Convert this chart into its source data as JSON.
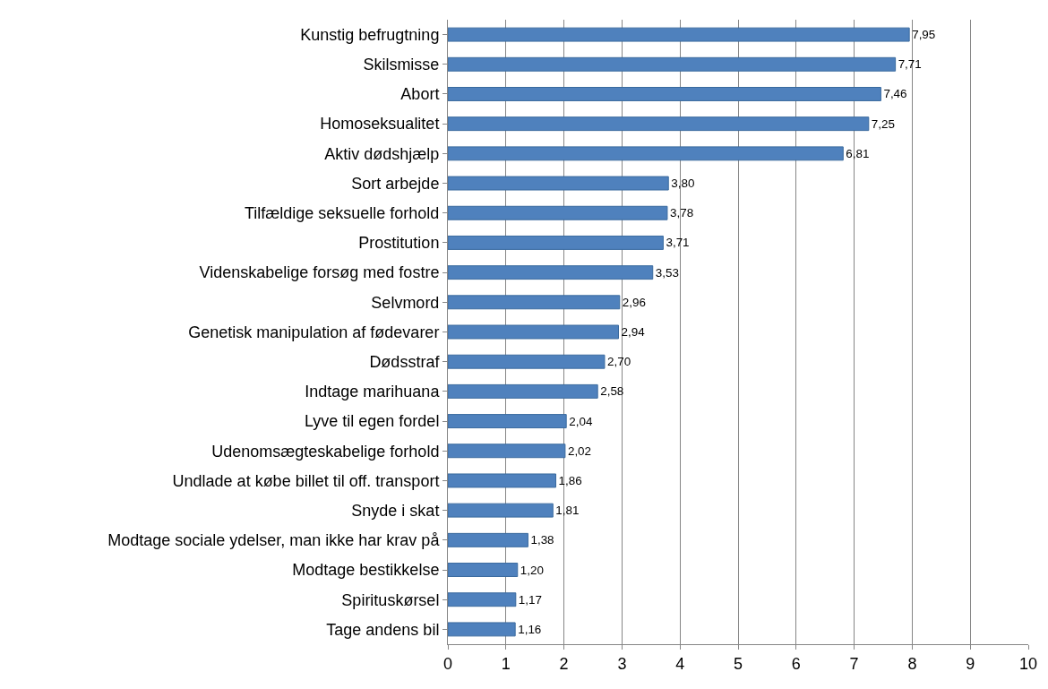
{
  "chart_data": {
    "type": "bar",
    "orientation": "horizontal",
    "categories": [
      "Kunstig befrugtning",
      "Skilsmisse",
      "Abort",
      "Homoseksualitet",
      "Aktiv dødshjælp",
      "Sort arbejde",
      "Tilfældige seksuelle forhold",
      "Prostitution",
      "Videnskabelige forsøg med fostre",
      "Selvmord",
      "Genetisk manipulation af fødevarer",
      "Dødsstraf",
      "Indtage marihuana",
      "Lyve til egen fordel",
      "Udenomsægteskabelige forhold",
      "Undlade at købe billet til off. transport",
      "Snyde i skat",
      "Modtage sociale ydelser, man ikke har krav på",
      "Modtage bestikkelse",
      "Spirituskørsel",
      "Tage andens bil"
    ],
    "values": [
      7.95,
      7.71,
      7.46,
      7.25,
      6.81,
      3.8,
      3.78,
      3.71,
      3.53,
      2.96,
      2.94,
      2.7,
      2.58,
      2.04,
      2.02,
      1.86,
      1.81,
      1.38,
      1.2,
      1.17,
      1.16
    ],
    "value_labels": [
      "7,95",
      "7,71",
      "7,46",
      "7,25",
      "6,81",
      "3,80",
      "3,78",
      "3,71",
      "3,53",
      "2,96",
      "2,94",
      "2,70",
      "2,58",
      "2,04",
      "2,02",
      "1,86",
      "1,81",
      "1,38",
      "1,20",
      "1,17",
      "1,16"
    ],
    "color": "#4f81bd",
    "xlim": [
      0,
      10
    ],
    "xticks": [
      0,
      1,
      2,
      3,
      4,
      5,
      6,
      7,
      8,
      9,
      10
    ],
    "grid": "x"
  }
}
